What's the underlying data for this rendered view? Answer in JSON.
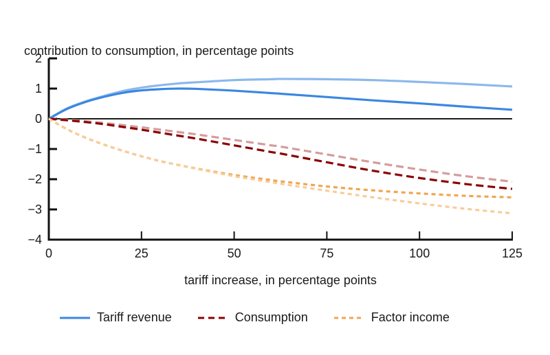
{
  "chart_data": {
    "type": "line",
    "title": "",
    "ylabel": "contribution to consumption, in percentage points",
    "xlabel": "tariff increase, in percentage points",
    "xlim": [
      0,
      125
    ],
    "ylim": [
      -4,
      2
    ],
    "xticks": [
      0,
      25,
      50,
      75,
      100,
      125
    ],
    "yticks": [
      2,
      1,
      0,
      -1,
      -2,
      -3,
      -4
    ],
    "ytick_labels": [
      "2",
      "1",
      "0",
      "−1",
      "−2",
      "−3",
      "−4"
    ],
    "grid": false,
    "legend_position": "bottom",
    "x": [
      0,
      5,
      10,
      15,
      20,
      25,
      30,
      35,
      40,
      50,
      60,
      62.5,
      75,
      87.5,
      100,
      112.5,
      125
    ],
    "series": [
      {
        "name": "Tariff revenue (faded)",
        "legend": false,
        "color": "#8bb8ec",
        "style": "solid",
        "values": [
          0,
          0.35,
          0.58,
          0.76,
          0.92,
          1.03,
          1.11,
          1.17,
          1.21,
          1.28,
          1.31,
          1.32,
          1.31,
          1.28,
          1.22,
          1.15,
          1.07
        ]
      },
      {
        "name": "Tariff revenue",
        "legend": true,
        "color": "#3b87e0",
        "style": "solid",
        "values": [
          0,
          0.33,
          0.56,
          0.73,
          0.86,
          0.94,
          0.98,
          1.0,
          0.99,
          0.93,
          0.85,
          0.83,
          0.72,
          0.61,
          0.51,
          0.4,
          0.3
        ]
      },
      {
        "name": "Consumption (faded)",
        "legend": false,
        "color": "#d49c9c",
        "style": "dashed",
        "values": [
          0,
          -0.03,
          -0.08,
          -0.14,
          -0.21,
          -0.28,
          -0.36,
          -0.44,
          -0.52,
          -0.7,
          -0.88,
          -0.92,
          -1.18,
          -1.44,
          -1.68,
          -1.9,
          -2.08
        ]
      },
      {
        "name": "Consumption",
        "legend": true,
        "color": "#8b0000",
        "style": "dashed",
        "values": [
          0,
          -0.05,
          -0.11,
          -0.18,
          -0.27,
          -0.36,
          -0.46,
          -0.56,
          -0.66,
          -0.88,
          -1.1,
          -1.15,
          -1.44,
          -1.72,
          -1.96,
          -2.16,
          -2.32
        ]
      },
      {
        "name": "Factor income",
        "legend": true,
        "color": "#f0a552",
        "style": "dotted",
        "values": [
          0,
          -0.35,
          -0.63,
          -0.86,
          -1.06,
          -1.24,
          -1.4,
          -1.53,
          -1.65,
          -1.86,
          -2.03,
          -2.07,
          -2.24,
          -2.37,
          -2.47,
          -2.55,
          -2.6
        ]
      },
      {
        "name": "Factor income (faded)",
        "legend": false,
        "color": "#f8cc99",
        "style": "dotted",
        "values": [
          0,
          -0.35,
          -0.63,
          -0.86,
          -1.06,
          -1.24,
          -1.4,
          -1.53,
          -1.66,
          -1.9,
          -2.1,
          -2.15,
          -2.38,
          -2.6,
          -2.8,
          -2.98,
          -3.13
        ]
      }
    ],
    "zero_line": true
  },
  "legend": [
    {
      "label": "Tariff revenue",
      "color": "#3b87e0",
      "style": "solid"
    },
    {
      "label": "Consumption",
      "color": "#8b0000",
      "style": "dashed"
    },
    {
      "label": "Factor income",
      "color": "#f0a552",
      "style": "dotted"
    }
  ]
}
